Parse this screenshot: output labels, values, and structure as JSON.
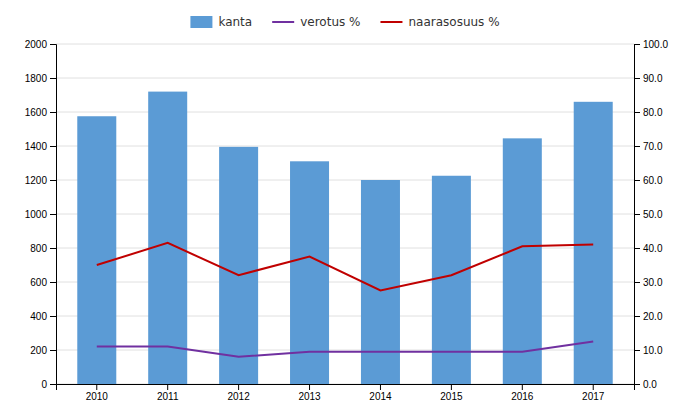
{
  "chart_data": {
    "type": "bar",
    "categories": [
      "2010",
      "2011",
      "2012",
      "2013",
      "2014",
      "2015",
      "2016",
      "2017"
    ],
    "series": [
      {
        "name": "kanta",
        "type": "bar",
        "color": "#5b9bd5",
        "values": [
          1575,
          1720,
          1395,
          1310,
          1200,
          1225,
          1445,
          1660
        ]
      },
      {
        "name": "verotus %",
        "type": "line",
        "color": "#7030a0",
        "axis": "y2",
        "values": [
          11.0,
          11.0,
          8.0,
          9.5,
          9.5,
          9.5,
          9.5,
          12.5
        ]
      },
      {
        "name": "naarasosuus %",
        "type": "line",
        "color": "#c00000",
        "axis": "y2",
        "values": [
          35.0,
          41.5,
          32.0,
          37.5,
          27.5,
          32.0,
          40.5,
          41.0
        ]
      }
    ],
    "ylim": [
      0,
      2000
    ],
    "yticks": [
      0,
      200,
      400,
      600,
      800,
      1000,
      1200,
      1400,
      1600,
      1800,
      2000
    ],
    "y2lim": [
      0.0,
      100.0
    ],
    "y2ticks": [
      {
        "value": 0.0,
        "label": "0.0"
      },
      {
        "value": 10.0,
        "label": "10.0"
      },
      {
        "value": 20.0,
        "label": "20.0"
      },
      {
        "value": 30.0,
        "label": "30.0"
      },
      {
        "value": 40.0,
        "label": "40.0"
      },
      {
        "value": 50.0,
        "label": "50.0"
      },
      {
        "value": 60.0,
        "label": "60.0"
      },
      {
        "value": 70.0,
        "label": "70.0"
      },
      {
        "value": 80.0,
        "label": "80.0"
      },
      {
        "value": 90.0,
        "label": "90.0"
      },
      {
        "value": 100.0,
        "label": "100.0"
      }
    ],
    "grid": true,
    "legend": "upper center"
  }
}
